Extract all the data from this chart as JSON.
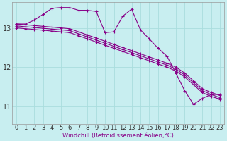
{
  "background_color": "#c8eef0",
  "line_color": "#880088",
  "grid_color": "#aadddd",
  "x_ticks": [
    0,
    1,
    2,
    3,
    4,
    5,
    6,
    7,
    8,
    9,
    10,
    11,
    12,
    13,
    14,
    15,
    16,
    17,
    18,
    19,
    20,
    21,
    22,
    23
  ],
  "y_ticks": [
    11,
    12,
    13
  ],
  "xlabel": "Windchill (Refroidissement éolien,°C)",
  "ylim": [
    10.55,
    13.65
  ],
  "xlim": [
    -0.5,
    23.5
  ],
  "series1": [
    13.1,
    13.1,
    13.2,
    13.35,
    13.5,
    13.52,
    13.52,
    13.45,
    13.45,
    13.42,
    12.88,
    12.9,
    13.3,
    13.48,
    12.95,
    12.72,
    12.48,
    12.28,
    11.85,
    11.4,
    11.05,
    11.2,
    11.3,
    11.3
  ],
  "series2": [
    13.1,
    13.08,
    13.06,
    13.04,
    13.02,
    13.0,
    12.98,
    12.9,
    12.82,
    12.74,
    12.66,
    12.58,
    12.5,
    12.42,
    12.34,
    12.26,
    12.18,
    12.1,
    12.0,
    11.85,
    11.65,
    11.45,
    11.35,
    11.28
  ],
  "series3": [
    13.05,
    13.03,
    13.01,
    12.99,
    12.97,
    12.95,
    12.93,
    12.85,
    12.77,
    12.69,
    12.61,
    12.53,
    12.45,
    12.37,
    12.29,
    12.21,
    12.13,
    12.05,
    11.95,
    11.8,
    11.6,
    11.4,
    11.3,
    11.22
  ],
  "series4": [
    13.0,
    12.98,
    12.96,
    12.94,
    12.92,
    12.9,
    12.88,
    12.8,
    12.72,
    12.64,
    12.56,
    12.48,
    12.4,
    12.32,
    12.24,
    12.16,
    12.08,
    12.0,
    11.9,
    11.75,
    11.55,
    11.35,
    11.25,
    11.18
  ],
  "tick_fontsize": 6,
  "xlabel_fontsize": 6,
  "ylabel_fontsize": 7
}
